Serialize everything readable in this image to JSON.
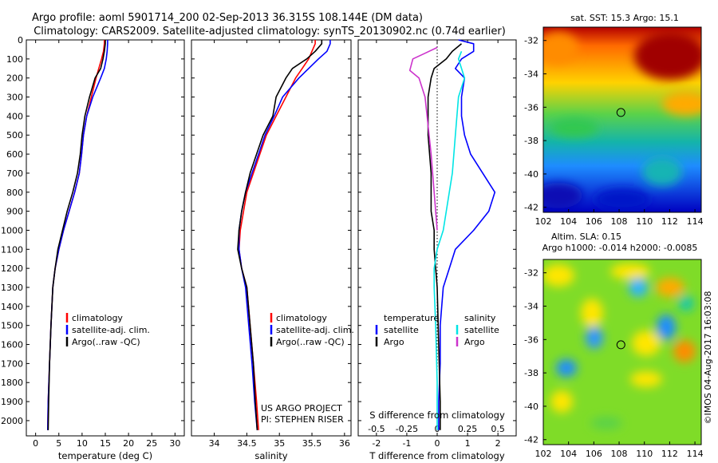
{
  "header": {
    "line1": "Argo profile: aoml 5901714_200 02-Sep-2013 36.315S 108.144E (DM data)",
    "line2": "Climatology: CARS2009. Satellite-adjusted climatology: synTS_20130902.nc (0.74d earlier)"
  },
  "colors": {
    "climatology": "#ff0000",
    "satellite": "#0000ff",
    "argo": "#000000",
    "salinity_sat": "#00e5e5",
    "salinity_argo": "#cc33cc"
  },
  "chart_data": [
    {
      "id": "temperature",
      "type": "line",
      "xlabel": "temperature (deg C)",
      "xlim": [
        -2,
        32
      ],
      "xticks": [
        0,
        5,
        10,
        15,
        20,
        25,
        30
      ],
      "ylim": [
        0,
        2080
      ],
      "yticks": [
        0,
        100,
        200,
        300,
        400,
        500,
        600,
        700,
        800,
        900,
        1000,
        1100,
        1200,
        1300,
        1400,
        1500,
        1600,
        1700,
        1800,
        1900,
        2000
      ],
      "legend": [
        "climatology",
        "satellite-adj. clim.",
        "Argo(..raw -QC)"
      ],
      "series": [
        {
          "name": "climatology",
          "color": "#ff0000",
          "points": [
            [
              14.8,
              0
            ],
            [
              14.8,
              20
            ],
            [
              14.6,
              60
            ],
            [
              14.2,
              100
            ],
            [
              13.6,
              150
            ],
            [
              13.0,
              200
            ],
            [
              12.0,
              300
            ],
            [
              11.0,
              400
            ],
            [
              10.3,
              500
            ],
            [
              9.9,
              600
            ],
            [
              9.4,
              700
            ],
            [
              8.4,
              800
            ],
            [
              7.2,
              900
            ],
            [
              6.0,
              1000
            ],
            [
              5.0,
              1100
            ],
            [
              4.2,
              1200
            ],
            [
              3.7,
              1300
            ],
            [
              3.3,
              1500
            ],
            [
              3.0,
              1700
            ],
            [
              2.7,
              1900
            ],
            [
              2.6,
              2050
            ]
          ]
        },
        {
          "name": "satellite-adj. clim.",
          "color": "#0000ff",
          "points": [
            [
              15.5,
              0
            ],
            [
              15.5,
              20
            ],
            [
              15.4,
              60
            ],
            [
              15.2,
              100
            ],
            [
              14.8,
              150
            ],
            [
              14.0,
              200
            ],
            [
              12.3,
              300
            ],
            [
              11.0,
              400
            ],
            [
              10.3,
              500
            ],
            [
              9.9,
              600
            ],
            [
              9.4,
              700
            ],
            [
              8.4,
              800
            ],
            [
              7.2,
              900
            ],
            [
              6.0,
              1000
            ],
            [
              5.0,
              1100
            ],
            [
              4.2,
              1200
            ],
            [
              3.7,
              1300
            ],
            [
              3.3,
              1500
            ],
            [
              3.0,
              1700
            ],
            [
              2.7,
              1900
            ],
            [
              2.6,
              2050
            ]
          ]
        },
        {
          "name": "Argo(..raw -QC)",
          "color": "#000000",
          "points": [
            [
              15.0,
              0
            ],
            [
              15.0,
              20
            ],
            [
              14.8,
              60
            ],
            [
              14.5,
              100
            ],
            [
              14.0,
              150
            ],
            [
              12.8,
              200
            ],
            [
              11.6,
              300
            ],
            [
              10.6,
              400
            ],
            [
              10.0,
              500
            ],
            [
              9.6,
              600
            ],
            [
              9.0,
              700
            ],
            [
              8.0,
              800
            ],
            [
              6.8,
              900
            ],
            [
              5.8,
              1000
            ],
            [
              4.8,
              1100
            ],
            [
              4.2,
              1200
            ],
            [
              3.7,
              1300
            ],
            [
              3.3,
              1500
            ],
            [
              3.0,
              1700
            ],
            [
              2.8,
              1900
            ],
            [
              2.7,
              2050
            ]
          ]
        }
      ]
    },
    {
      "id": "salinity",
      "type": "line",
      "xlabel": "salinity",
      "xlim": [
        33.65,
        36.1
      ],
      "xticks": [
        34,
        34.5,
        35,
        35.5,
        36
      ],
      "ylim": [
        0,
        2080
      ],
      "legend": [
        "climatology",
        "satellite-adj. clim.",
        "Argo(..raw -QC)"
      ],
      "annotation": [
        "US ARGO PROJECT",
        "PI: STEPHEN RISER"
      ],
      "series": [
        {
          "name": "climatology",
          "color": "#ff0000",
          "points": [
            [
              35.55,
              0
            ],
            [
              35.55,
              20
            ],
            [
              35.5,
              60
            ],
            [
              35.45,
              100
            ],
            [
              35.35,
              150
            ],
            [
              35.25,
              200
            ],
            [
              35.1,
              300
            ],
            [
              34.95,
              400
            ],
            [
              34.8,
              500
            ],
            [
              34.7,
              600
            ],
            [
              34.6,
              700
            ],
            [
              34.5,
              800
            ],
            [
              34.45,
              900
            ],
            [
              34.4,
              1000
            ],
            [
              34.38,
              1100
            ],
            [
              34.42,
              1200
            ],
            [
              34.5,
              1300
            ],
            [
              34.55,
              1500
            ],
            [
              34.6,
              1700
            ],
            [
              34.65,
              1900
            ],
            [
              34.68,
              2050
            ]
          ]
        },
        {
          "name": "satellite-adj. clim.",
          "color": "#0000ff",
          "points": [
            [
              35.78,
              0
            ],
            [
              35.78,
              20
            ],
            [
              35.73,
              60
            ],
            [
              35.6,
              100
            ],
            [
              35.45,
              150
            ],
            [
              35.3,
              200
            ],
            [
              35.05,
              300
            ],
            [
              34.92,
              400
            ],
            [
              34.78,
              500
            ],
            [
              34.68,
              600
            ],
            [
              34.58,
              700
            ],
            [
              34.48,
              800
            ],
            [
              34.42,
              900
            ],
            [
              34.38,
              1000
            ],
            [
              34.38,
              1100
            ],
            [
              34.42,
              1200
            ],
            [
              34.48,
              1300
            ],
            [
              34.53,
              1500
            ],
            [
              34.58,
              1700
            ],
            [
              34.62,
              1900
            ],
            [
              34.66,
              2050
            ]
          ]
        },
        {
          "name": "Argo(..raw -QC)",
          "color": "#000000",
          "points": [
            [
              35.65,
              0
            ],
            [
              35.65,
              20
            ],
            [
              35.55,
              60
            ],
            [
              35.42,
              100
            ],
            [
              35.2,
              150
            ],
            [
              35.1,
              200
            ],
            [
              34.95,
              300
            ],
            [
              34.9,
              400
            ],
            [
              34.75,
              500
            ],
            [
              34.65,
              600
            ],
            [
              34.55,
              700
            ],
            [
              34.48,
              800
            ],
            [
              34.42,
              900
            ],
            [
              34.38,
              1000
            ],
            [
              34.36,
              1100
            ],
            [
              34.42,
              1200
            ],
            [
              34.5,
              1300
            ],
            [
              34.55,
              1500
            ],
            [
              34.6,
              1700
            ],
            [
              34.63,
              1900
            ],
            [
              34.66,
              2050
            ]
          ]
        }
      ]
    },
    {
      "id": "differences",
      "type": "line",
      "xlabel": "T difference from climatology",
      "xlim": [
        -2.6,
        2.6
      ],
      "xticks": [
        -2,
        -1,
        0,
        1,
        2
      ],
      "top_label": "S difference from climatology",
      "top_ticks": [
        "-0.5",
        "-0.25",
        "0",
        "0.25",
        "0.5"
      ],
      "ylim": [
        0,
        2080
      ],
      "legend": {
        "temperature": [
          "satellite",
          "Argo"
        ],
        "salinity": [
          "satellite",
          "Argo"
        ]
      },
      "series": [
        {
          "name": "temperature satellite",
          "color": "#0000ff",
          "points": [
            [
              0.7,
              0
            ],
            [
              1.2,
              20
            ],
            [
              1.2,
              60
            ],
            [
              0.8,
              100
            ],
            [
              0.6,
              150
            ],
            [
              0.9,
              200
            ],
            [
              0.8,
              300
            ],
            [
              0.8,
              400
            ],
            [
              0.9,
              500
            ],
            [
              1.1,
              600
            ],
            [
              1.5,
              700
            ],
            [
              1.9,
              800
            ],
            [
              1.7,
              900
            ],
            [
              1.2,
              1000
            ],
            [
              0.6,
              1100
            ],
            [
              0.4,
              1200
            ],
            [
              0.2,
              1300
            ],
            [
              0.1,
              1500
            ],
            [
              0.1,
              1700
            ],
            [
              0.05,
              1900
            ],
            [
              0.05,
              2050
            ]
          ]
        },
        {
          "name": "temperature Argo",
          "color": "#000000",
          "points": [
            [
              0.8,
              20
            ],
            [
              0.5,
              60
            ],
            [
              0.3,
              100
            ],
            [
              -0.1,
              150
            ],
            [
              -0.2,
              200
            ],
            [
              -0.3,
              300
            ],
            [
              -0.3,
              500
            ],
            [
              -0.2,
              700
            ],
            [
              -0.2,
              900
            ],
            [
              -0.1,
              1000
            ],
            [
              -0.1,
              1100
            ],
            [
              0.0,
              1300
            ],
            [
              0.05,
              1600
            ],
            [
              0.1,
              1900
            ],
            [
              0.1,
              2050
            ]
          ]
        },
        {
          "name": "salinity satellite",
          "color": "#00e5e5",
          "points": [
            [
              0.8,
              60
            ],
            [
              0.7,
              100
            ],
            [
              0.8,
              150
            ],
            [
              0.9,
              200
            ],
            [
              0.7,
              300
            ],
            [
              0.6,
              500
            ],
            [
              0.5,
              700
            ],
            [
              0.4,
              800
            ],
            [
              0.3,
              900
            ],
            [
              0.2,
              1000
            ],
            [
              0.0,
              1100
            ],
            [
              -0.1,
              1200
            ],
            [
              -0.1,
              1300
            ],
            [
              -0.05,
              1500
            ],
            [
              0.0,
              1800
            ],
            [
              0.0,
              2050
            ]
          ]
        },
        {
          "name": "salinity Argo",
          "color": "#cc33cc",
          "points": [
            [
              0.0,
              40
            ],
            [
              -0.4,
              70
            ],
            [
              -0.8,
              100
            ],
            [
              -0.9,
              160
            ],
            [
              -0.6,
              200
            ],
            [
              -0.4,
              300
            ],
            [
              -0.3,
              450
            ],
            [
              -0.2,
              600
            ],
            [
              -0.1,
              800
            ],
            [
              0.0,
              1000
            ]
          ]
        }
      ]
    },
    {
      "id": "sst_map",
      "type": "heatmap",
      "title": "sat. SST: 15.3 Argo: 15.1",
      "xlim": [
        102,
        114.5
      ],
      "ylim": [
        -42.3,
        -31.2
      ],
      "xticks": [
        102,
        104,
        106,
        108,
        110,
        112,
        114
      ],
      "yticks": [
        -32,
        -34,
        -36,
        -38,
        -40,
        -42
      ],
      "marker": {
        "lon": 108.144,
        "lat": -36.315
      }
    },
    {
      "id": "sla_map",
      "type": "heatmap",
      "title": "Altim. SLA: 0.15",
      "subtitle": "Argo h1000: -0.014 h2000: -0.0085",
      "xlim": [
        102,
        114.5
      ],
      "ylim": [
        -42.3,
        -31.2
      ],
      "xticks": [
        102,
        104,
        106,
        108,
        110,
        112,
        114
      ],
      "yticks": [
        -32,
        -34,
        -36,
        -38,
        -40,
        -42
      ],
      "marker": {
        "lon": 108.144,
        "lat": -36.315
      }
    }
  ],
  "credit": "©IMOS 04-Aug-2017 16:03:08"
}
